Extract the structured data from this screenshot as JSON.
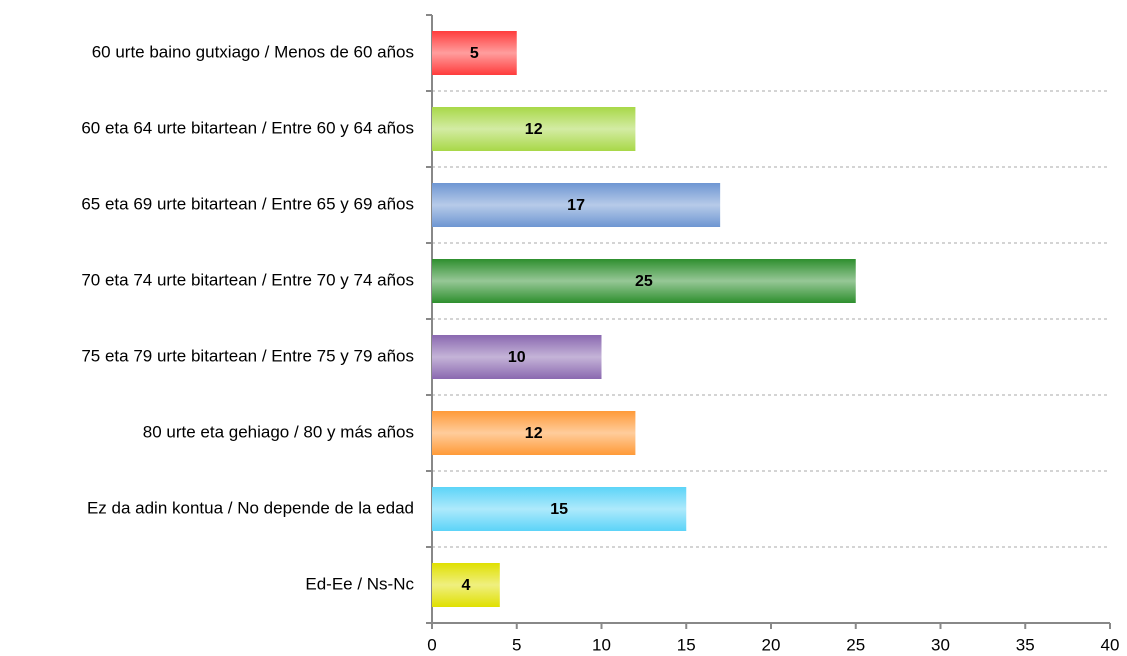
{
  "chart_data": {
    "type": "bar",
    "orientation": "horizontal",
    "categories": [
      "60 urte baino gutxiago / Menos de 60 años",
      "60 eta 64 urte bitartean / Entre 60 y 64 años",
      "65 eta 69 urte bitartean / Entre 65 y 69 años",
      "70 eta 74 urte bitartean / Entre 70 y 74 años",
      "75 eta 79 urte bitartean / Entre 75 y 79 años",
      "80 urte eta gehiago / 80 y más años",
      "Ez da adin kontua / No depende de la edad",
      "Ed-Ee / Ns-Nc"
    ],
    "values": [
      5,
      12,
      17,
      25,
      10,
      12,
      15,
      4
    ],
    "colors": [
      "#ff3c3c",
      "#a8d848",
      "#6e96d2",
      "#2e8f2e",
      "#8a68b0",
      "#ff9a38",
      "#5cd4f8",
      "#e0e000"
    ],
    "xlim": [
      0,
      40
    ],
    "xticks": [
      0,
      5,
      10,
      15,
      20,
      25,
      30,
      35,
      40
    ],
    "grid": false
  }
}
